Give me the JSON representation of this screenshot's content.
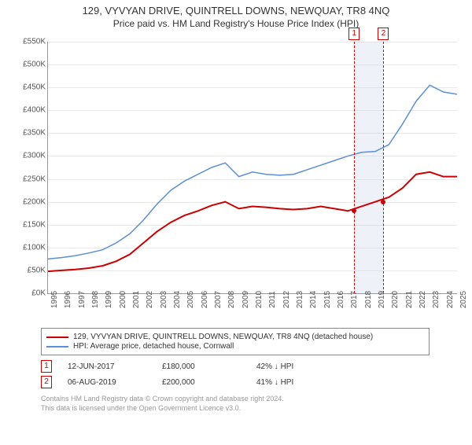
{
  "title": "129, VYVYAN DRIVE, QUINTRELL DOWNS, NEWQUAY, TR8 4NQ",
  "subtitle": "Price paid vs. HM Land Registry's House Price Index (HPI)",
  "chart": {
    "type": "line",
    "background_color": "#ffffff",
    "grid_color": "#e8e8e8",
    "axis_color": "#999999",
    "ylim": [
      0,
      550
    ],
    "ytick_step": 50,
    "ytick_prefix": "£",
    "ytick_suffix": "K",
    "xlim": [
      1995,
      2025
    ],
    "xtick_step": 1,
    "title_fontsize": 13,
    "label_fontsize": 10,
    "series": [
      {
        "name": "129, VYVYAN DRIVE, QUINTRELL DOWNS, NEWQUAY, TR8 4NQ (detached house)",
        "color": "#cc0000",
        "line_width": 2,
        "data": [
          [
            1995,
            48
          ],
          [
            1996,
            50
          ],
          [
            1997,
            52
          ],
          [
            1998,
            55
          ],
          [
            1999,
            60
          ],
          [
            2000,
            70
          ],
          [
            2001,
            85
          ],
          [
            2002,
            110
          ],
          [
            2003,
            135
          ],
          [
            2004,
            155
          ],
          [
            2005,
            170
          ],
          [
            2006,
            180
          ],
          [
            2007,
            192
          ],
          [
            2008,
            200
          ],
          [
            2009,
            185
          ],
          [
            2010,
            190
          ],
          [
            2011,
            188
          ],
          [
            2012,
            185
          ],
          [
            2013,
            183
          ],
          [
            2014,
            185
          ],
          [
            2015,
            190
          ],
          [
            2016,
            185
          ],
          [
            2017,
            180
          ],
          [
            2018,
            190
          ],
          [
            2019,
            200
          ],
          [
            2020,
            210
          ],
          [
            2021,
            230
          ],
          [
            2022,
            260
          ],
          [
            2023,
            265
          ],
          [
            2024,
            255
          ],
          [
            2025,
            255
          ]
        ]
      },
      {
        "name": "HPI: Average price, detached house, Cornwall",
        "color": "#5b8fd6",
        "line_width": 1.5,
        "data": [
          [
            1995,
            75
          ],
          [
            1996,
            78
          ],
          [
            1997,
            82
          ],
          [
            1998,
            88
          ],
          [
            1999,
            95
          ],
          [
            2000,
            110
          ],
          [
            2001,
            130
          ],
          [
            2002,
            160
          ],
          [
            2003,
            195
          ],
          [
            2004,
            225
          ],
          [
            2005,
            245
          ],
          [
            2006,
            260
          ],
          [
            2007,
            275
          ],
          [
            2008,
            285
          ],
          [
            2009,
            255
          ],
          [
            2010,
            265
          ],
          [
            2011,
            260
          ],
          [
            2012,
            258
          ],
          [
            2013,
            260
          ],
          [
            2014,
            270
          ],
          [
            2015,
            280
          ],
          [
            2016,
            290
          ],
          [
            2017,
            300
          ],
          [
            2018,
            308
          ],
          [
            2019,
            310
          ],
          [
            2020,
            325
          ],
          [
            2021,
            370
          ],
          [
            2022,
            420
          ],
          [
            2023,
            455
          ],
          [
            2024,
            440
          ],
          [
            2025,
            435
          ]
        ]
      }
    ],
    "markers": [
      {
        "id": "1",
        "year": 2017.45,
        "color": "#cc0000",
        "value": 180
      },
      {
        "id": "2",
        "year": 2019.6,
        "color": "#cc0000",
        "value": 200
      }
    ],
    "shade": {
      "from": 2017.45,
      "to": 2019.6,
      "color": "rgba(200,210,230,0.3)"
    }
  },
  "legend": {
    "items": [
      {
        "color": "#cc0000",
        "label": "129, VYVYAN DRIVE, QUINTRELL DOWNS, NEWQUAY, TR8 4NQ (detached house)"
      },
      {
        "color": "#5b8fd6",
        "label": "HPI: Average price, detached house, Cornwall"
      }
    ]
  },
  "records": [
    {
      "id": "1",
      "color": "#cc0000",
      "date": "12-JUN-2017",
      "price": "£180,000",
      "pct": "42% ↓ HPI"
    },
    {
      "id": "2",
      "color": "#cc0000",
      "date": "06-AUG-2019",
      "price": "£200,000",
      "pct": "41% ↓ HPI"
    }
  ],
  "footer": {
    "line1": "Contains HM Land Registry data © Crown copyright and database right 2024.",
    "line2": "This data is licensed under the Open Government Licence v3.0."
  }
}
